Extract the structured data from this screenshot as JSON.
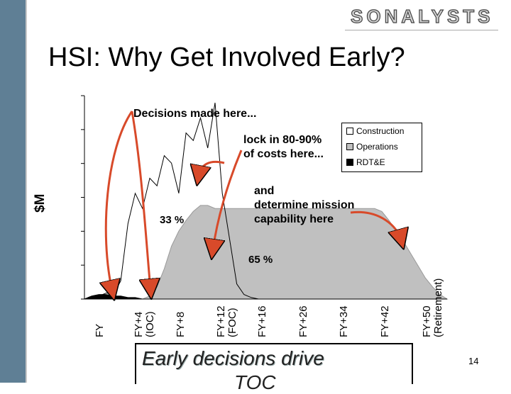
{
  "slide": {
    "brand": "SONALYSTS",
    "title": "HSI: Why Get Involved Early?",
    "footer_line1": "Early decisions drive",
    "footer_line2": "TOC",
    "page_number": "14"
  },
  "annotations": {
    "decisions": "Decisions made here...",
    "lock_line1": "lock in 80-90%",
    "lock_line2": "of costs here...",
    "mission_line1": "and",
    "mission_line2": "determine mission",
    "mission_line3": "capability here",
    "pct_left": "33 %",
    "pct_right": "65 %"
  },
  "colors": {
    "side_bar": "#5f7f95",
    "operations": "#c0c0c0",
    "arrow": "#d84a2a"
  },
  "chart_data": {
    "type": "area",
    "ylabel": "$M",
    "xlabel": "",
    "x_ticks": [
      {
        "label": "FY",
        "line2": ""
      },
      {
        "label": "FY+4",
        "line2": "(IOC)"
      },
      {
        "label": "FY+8",
        "line2": ""
      },
      {
        "label": "FY+12",
        "line2": "(FOC)"
      },
      {
        "label": "FY+16",
        "line2": ""
      },
      {
        "label": "FY+26",
        "line2": ""
      },
      {
        "label": "FY+34",
        "line2": ""
      },
      {
        "label": "FY+42",
        "line2": ""
      },
      {
        "label": "FY+50",
        "line2": "(Retirement)"
      }
    ],
    "legend": [
      "Construction",
      "Operations",
      "RDT&E"
    ],
    "legend_position": "top-right",
    "series": [
      {
        "name": "Construction",
        "values": [
          0,
          1,
          2,
          4,
          3,
          12,
          50,
          70,
          60,
          80,
          75,
          95,
          90,
          70,
          110,
          105,
          120,
          100,
          130,
          70,
          40,
          10,
          3,
          1,
          0,
          0,
          0,
          0,
          0,
          0,
          0,
          0,
          0,
          0,
          0,
          0,
          0,
          0,
          0,
          0,
          0,
          0,
          0,
          0,
          0,
          0,
          0,
          0,
          0,
          0,
          0
        ]
      },
      {
        "name": "Operations",
        "values": [
          0,
          0,
          0,
          0,
          0,
          0,
          0,
          0,
          0,
          2,
          8,
          20,
          35,
          45,
          52,
          58,
          62,
          62,
          60,
          60,
          60,
          60,
          60,
          60,
          60,
          60,
          60,
          60,
          60,
          60,
          60,
          60,
          60,
          60,
          60,
          60,
          60,
          60,
          60,
          60,
          60,
          58,
          52,
          45,
          38,
          30,
          22,
          14,
          8,
          3,
          0
        ]
      },
      {
        "name": "RDT&E",
        "values": [
          0,
          2,
          3,
          3,
          2,
          2,
          1,
          1,
          0,
          0,
          0,
          0,
          0,
          0,
          0,
          0,
          0,
          0,
          0,
          0,
          0,
          0,
          0,
          0,
          0,
          0,
          0,
          0,
          0,
          0,
          0,
          0,
          0,
          0,
          0,
          0,
          0,
          0,
          0,
          0,
          0,
          0,
          0,
          0,
          0,
          0,
          0,
          0,
          0,
          0,
          0
        ]
      }
    ],
    "grid": false
  }
}
